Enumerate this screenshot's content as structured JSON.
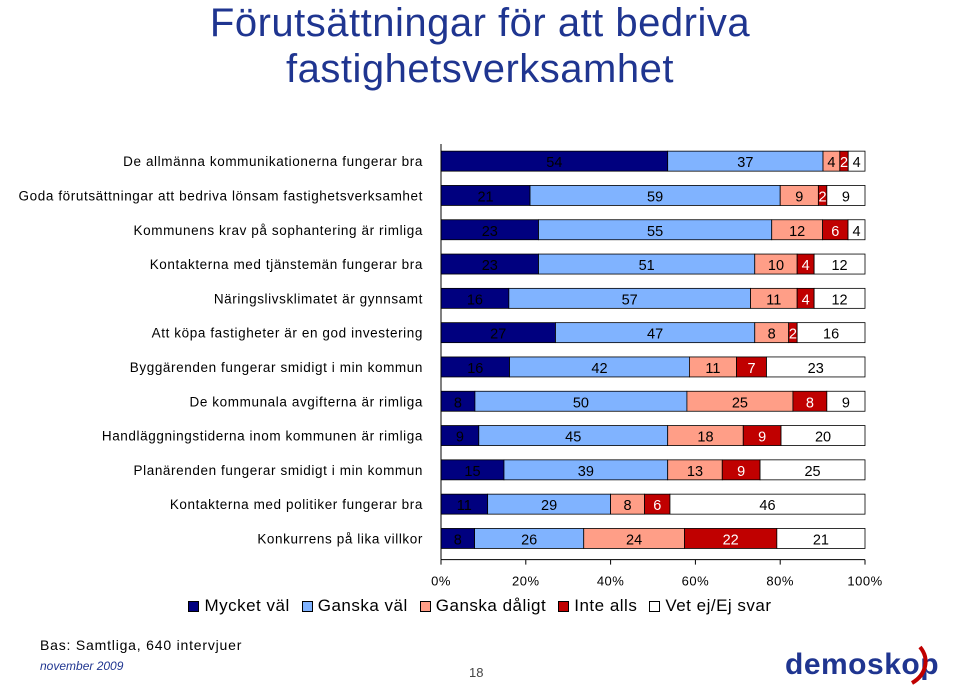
{
  "title": {
    "line1": "Förutsättningar för att bedriva",
    "line2": "fastighetsverksamhet"
  },
  "chart_data": {
    "type": "bar",
    "orientation": "horizontal",
    "stacked": "percent",
    "xlim": [
      0,
      100
    ],
    "x_ticks": [
      "0%",
      "20%",
      "40%",
      "60%",
      "80%",
      "100%"
    ],
    "categories": [
      "De allmänna kommunikationerna fungerar bra",
      "Goda förutsättningar att bedriva lönsam fastighetsverksamhet",
      "Kommunens krav på sophantering är rimliga",
      "Kontakterna med tjänstemän fungerar bra",
      "Näringslivsklimatet är gynnsamt",
      "Att köpa fastigheter är en god investering",
      "Byggärenden fungerar smidigt i min kommun",
      "De kommunala avgifterna är rimliga",
      "Handläggningstiderna inom kommunen är rimliga",
      "Planärenden fungerar smidigt i min kommun",
      "Kontakterna med politiker fungerar bra",
      "Konkurrens på lika villkor"
    ],
    "series": [
      {
        "name": "Mycket väl",
        "color": "#00007f",
        "values": [
          54,
          21,
          23,
          23,
          16,
          27,
          16,
          8,
          9,
          15,
          11,
          8
        ]
      },
      {
        "name": "Ganska väl",
        "color": "#80b3ff",
        "values": [
          37,
          59,
          55,
          51,
          57,
          47,
          42,
          50,
          45,
          39,
          29,
          26
        ]
      },
      {
        "name": "Ganska dåligt",
        "color": "#ff9e87",
        "values": [
          4,
          9,
          12,
          10,
          11,
          8,
          11,
          25,
          18,
          13,
          8,
          24
        ]
      },
      {
        "name": "Inte alls",
        "color": "#c00000",
        "values": [
          2,
          2,
          6,
          4,
          4,
          2,
          7,
          8,
          9,
          9,
          6,
          22
        ]
      },
      {
        "name": "Vet ej/Ej svar",
        "color": "#ffffff",
        "values": [
          4,
          9,
          4,
          12,
          12,
          16,
          23,
          9,
          20,
          25,
          46,
          21
        ]
      }
    ]
  },
  "footer": {
    "source": "Bas: Samtliga, 640 intervjuer",
    "date": "november 2009",
    "page": "18",
    "logo": "demoskop"
  }
}
